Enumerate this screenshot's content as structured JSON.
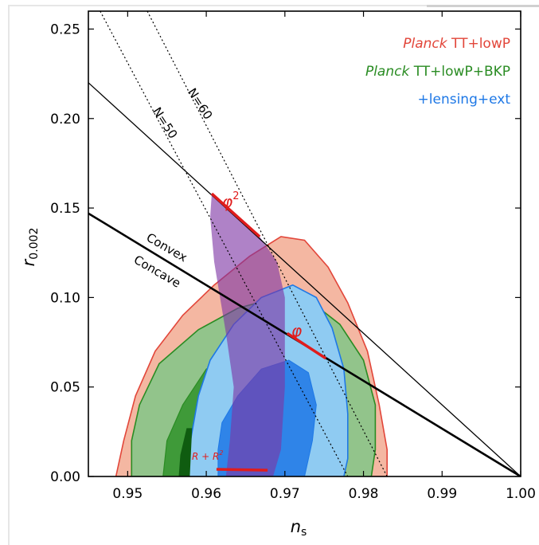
{
  "chart_data": {
    "type": "scatter",
    "xlabel": "n",
    "xlabel_sub": "s",
    "ylabel": "r",
    "ylabel_sub": "0.002",
    "xlim": [
      0.945,
      1.0
    ],
    "ylim": [
      0.0,
      0.26
    ],
    "xticks": [
      "0.95",
      "0.96",
      "0.97",
      "0.98",
      "0.99",
      "1.00"
    ],
    "yticks": [
      "0.00",
      "0.05",
      "0.10",
      "0.15",
      "0.20",
      "0.25"
    ],
    "legend_position": "top-right",
    "legend": [
      {
        "italic": "Planck",
        "rest": " TT+lowP",
        "color": "#e2463a"
      },
      {
        "italic": "Planck",
        "rest": " TT+lowP+BKP",
        "color": "#2a8c23"
      },
      {
        "italic": "",
        "rest": "+lensing+ext",
        "color": "#1e78e6"
      }
    ],
    "annotations": {
      "n60": "N=60",
      "n50": "N=50",
      "convex": "Convex",
      "concave": "Concave",
      "phi2": "φ",
      "phi2_sup": "2",
      "phi": "φ",
      "starobinsky": "R + R"
    },
    "contours": [
      {
        "name": "Planck TT+lowP",
        "fill_outer": "#f4b7a2",
        "fill_inner": "#e8826a",
        "stroke": "#e2463a",
        "outer": [
          [
            0.9485,
            0.0
          ],
          [
            0.9495,
            0.02
          ],
          [
            0.951,
            0.045
          ],
          [
            0.9535,
            0.07
          ],
          [
            0.957,
            0.09
          ],
          [
            0.961,
            0.107
          ],
          [
            0.9655,
            0.123
          ],
          [
            0.9695,
            0.134
          ],
          [
            0.9725,
            0.132
          ],
          [
            0.9755,
            0.117
          ],
          [
            0.978,
            0.097
          ],
          [
            0.9805,
            0.07
          ],
          [
            0.982,
            0.04
          ],
          [
            0.983,
            0.015
          ],
          [
            0.983,
            0.0
          ]
        ]
      },
      {
        "name": "Planck TT+lowP+BKP",
        "fill_outer": "#92c48b",
        "fill_inner": "#3f9a39",
        "stroke": "#2a8c23",
        "outer": [
          [
            0.9505,
            0.0
          ],
          [
            0.9505,
            0.02
          ],
          [
            0.9515,
            0.04
          ],
          [
            0.954,
            0.063
          ],
          [
            0.959,
            0.082
          ],
          [
            0.964,
            0.094
          ],
          [
            0.969,
            0.1
          ],
          [
            0.9735,
            0.097
          ],
          [
            0.977,
            0.085
          ],
          [
            0.98,
            0.065
          ],
          [
            0.9815,
            0.04
          ],
          [
            0.9815,
            0.015
          ],
          [
            0.981,
            0.0
          ]
        ],
        "inner": [
          [
            0.9545,
            0.0
          ],
          [
            0.955,
            0.02
          ],
          [
            0.957,
            0.04
          ],
          [
            0.96,
            0.06
          ],
          [
            0.964,
            0.07
          ],
          [
            0.969,
            0.073
          ],
          [
            0.9735,
            0.068
          ],
          [
            0.9765,
            0.055
          ],
          [
            0.978,
            0.035
          ],
          [
            0.978,
            0.015
          ],
          [
            0.977,
            0.0
          ]
        ]
      },
      {
        "name": "+lensing+ext",
        "fill_outer": "#8fcbf2",
        "fill_inner": "#2f84e8",
        "stroke": "#1e78e6",
        "outer": [
          [
            0.957,
            0.0
          ],
          [
            0.958,
            0.02
          ],
          [
            0.959,
            0.045
          ],
          [
            0.9605,
            0.065
          ],
          [
            0.9635,
            0.085
          ],
          [
            0.967,
            0.1
          ],
          [
            0.971,
            0.107
          ],
          [
            0.974,
            0.1
          ],
          [
            0.976,
            0.083
          ],
          [
            0.9775,
            0.06
          ],
          [
            0.978,
            0.035
          ],
          [
            0.978,
            0.01
          ],
          [
            0.9775,
            0.0
          ]
        ],
        "inner": [
          [
            0.9615,
            0.0
          ],
          [
            0.9615,
            0.015
          ],
          [
            0.962,
            0.03
          ],
          [
            0.964,
            0.045
          ],
          [
            0.967,
            0.06
          ],
          [
            0.9705,
            0.065
          ],
          [
            0.973,
            0.058
          ],
          [
            0.974,
            0.04
          ],
          [
            0.9735,
            0.02
          ],
          [
            0.9725,
            0.0
          ]
        ]
      }
    ],
    "lines": [
      {
        "name": "N=60",
        "style": "dotted",
        "points": [
          [
            0.9525,
            0.26
          ],
          [
            0.983,
            0.0
          ]
        ]
      },
      {
        "name": "N=50",
        "style": "dotted",
        "points": [
          [
            0.9465,
            0.26
          ],
          [
            0.978,
            0.0
          ]
        ]
      },
      {
        "name": "phi2 line",
        "style": "solid-thin",
        "points": [
          [
            0.945,
            0.22
          ],
          [
            1.0,
            0.0
          ]
        ]
      },
      {
        "name": "convex-concave boundary",
        "style": "solid-thick",
        "points": [
          [
            0.945,
            0.147
          ],
          [
            1.0,
            0.0
          ]
        ]
      }
    ],
    "purple_band": [
      [
        0.9607,
        0.158
      ],
      [
        0.9668,
        0.134
      ],
      [
        0.969,
        0.12
      ],
      [
        0.97,
        0.1
      ],
      [
        0.97,
        0.05
      ],
      [
        0.9695,
        0.015
      ],
      [
        0.9685,
        0.0
      ],
      [
        0.9625,
        0.0
      ],
      [
        0.963,
        0.02
      ],
      [
        0.9635,
        0.05
      ],
      [
        0.9625,
        0.08
      ],
      [
        0.961,
        0.12
      ],
      [
        0.9605,
        0.145
      ]
    ],
    "red_segments": [
      {
        "name": "phi2",
        "points": [
          [
            0.9607,
            0.158
          ],
          [
            0.9668,
            0.134
          ]
        ]
      },
      {
        "name": "phi",
        "points": [
          [
            0.9703,
            0.08
          ],
          [
            0.9752,
            0.066
          ]
        ]
      },
      {
        "name": "starobinsky",
        "points": [
          [
            0.9613,
            0.004
          ],
          [
            0.9678,
            0.0035
          ]
        ]
      }
    ],
    "colors": {
      "purple": "#7e35a5",
      "red": "#e01c1c",
      "planck_dark_green": "#0f5c10"
    }
  }
}
